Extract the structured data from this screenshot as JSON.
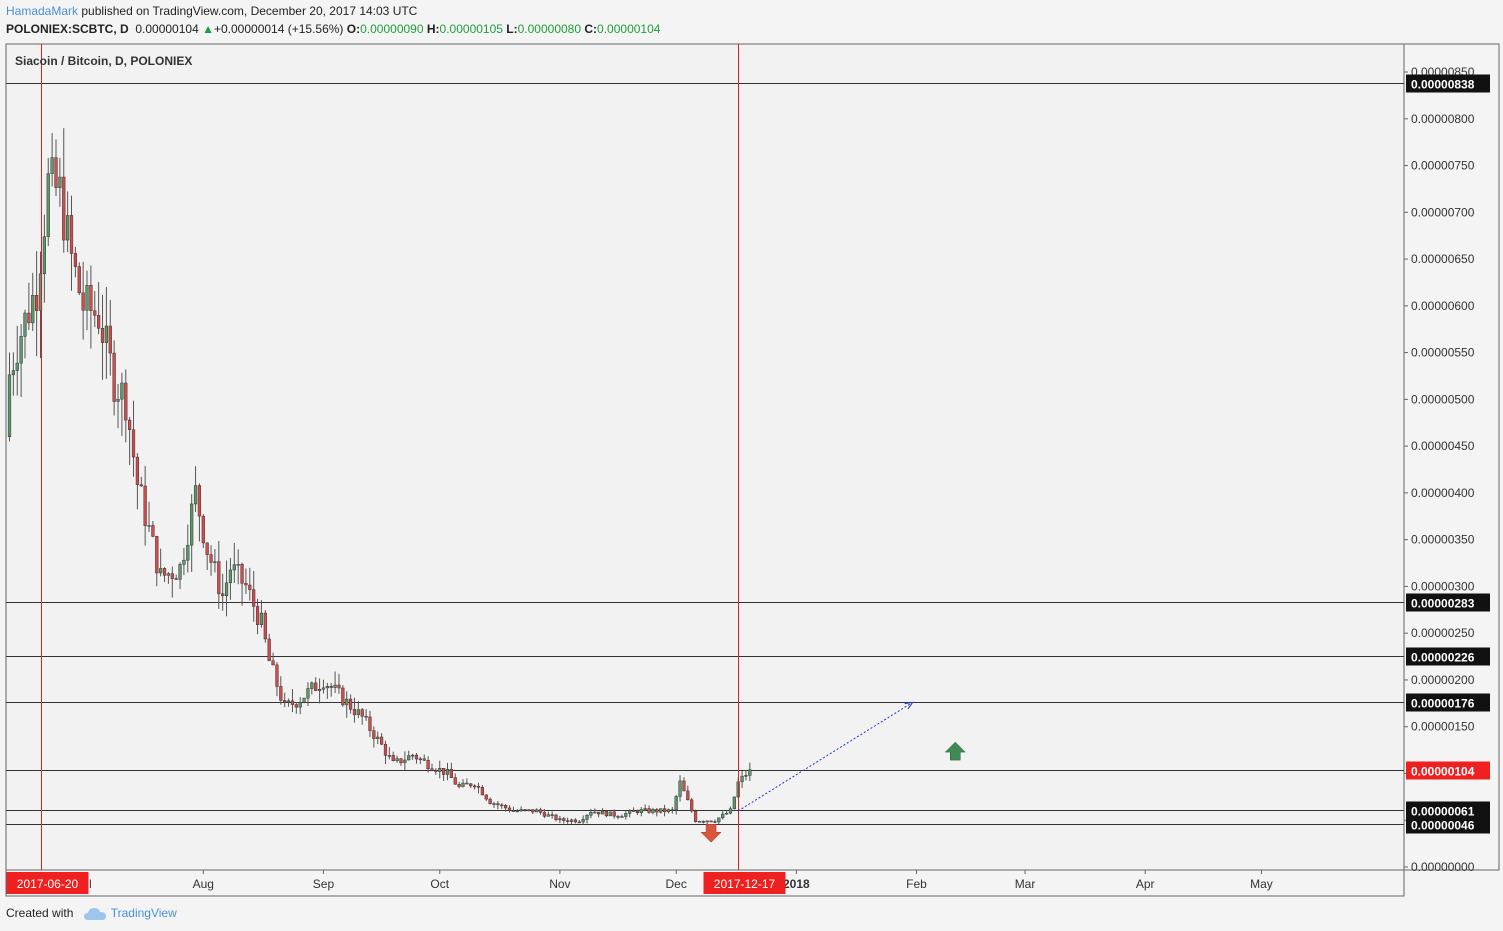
{
  "header": {
    "author": "HamadaMark",
    "published_text": "published on TradingView.com, December 20, 2017 14:03 UTC",
    "symbol": "POLONIEX:SCBTC, D",
    "last_price": "0.00000104",
    "change_arrow": "▲",
    "change": "+0.00000014 (+15.56%)",
    "open_label": "O:",
    "open": "0.00000090",
    "high_label": "H:",
    "high": "0.00000105",
    "low_label": "L:",
    "low": "0.00000080",
    "close_label": "C:",
    "close": "0.00000104"
  },
  "footer": {
    "created_with": "Created with",
    "brand": "TradingView"
  },
  "colors": {
    "up": "#5b9a68",
    "down": "#d64a4a",
    "accent": "#4a90d9",
    "vertical_marker": "#e02020"
  },
  "chart_data": {
    "type": "candlestick",
    "title": "Siacoin / Bitcoin, D, POLONIEX",
    "y_ticks": [
      "0.00000850",
      "0.00000800",
      "0.00000750",
      "0.00000700",
      "0.00000650",
      "0.00000600",
      "0.00000550",
      "0.00000500",
      "0.00000450",
      "0.00000400",
      "0.00000350",
      "0.00000300",
      "0.00000250",
      "0.00000200",
      "0.00000150",
      "0.00000100",
      "0.00000050",
      "0.00000000"
    ],
    "y_range": [
      0,
      8.5e-06
    ],
    "x_labels": [
      {
        "label": "Aug",
        "date": "2017-08-01"
      },
      {
        "label": "Sep",
        "date": "2017-09-01"
      },
      {
        "label": "Oct",
        "date": "2017-10-01"
      },
      {
        "label": "Nov",
        "date": "2017-11-01"
      },
      {
        "label": "Dec",
        "date": "2017-12-01"
      },
      {
        "label": "2018",
        "date": "2018-01-01"
      },
      {
        "label": "Feb",
        "date": "2018-02-01"
      },
      {
        "label": "Mar",
        "date": "2018-03-01"
      },
      {
        "label": "Apr",
        "date": "2018-04-01"
      },
      {
        "label": "May",
        "date": "2018-05-01"
      }
    ],
    "partial_x_label": "l",
    "x_range": [
      "2017-06-20",
      "2018-05-21"
    ],
    "vertical_markers": [
      {
        "date": "2017-06-20",
        "label": "2017-06-20"
      },
      {
        "date": "2017-12-17",
        "label": "2017-12-17"
      }
    ],
    "horizontal_levels": [
      {
        "value": 8.38e-06,
        "label": "0.00000838"
      },
      {
        "value": 2.83e-06,
        "label": "0.00000283"
      },
      {
        "value": 2.26e-06,
        "label": "0.00000226"
      },
      {
        "value": 1.76e-06,
        "label": "0.00000176"
      },
      {
        "value": 1.04e-06,
        "label": "0.00000104",
        "current": true
      },
      {
        "value": 6.1e-07,
        "label": "0.00000061"
      },
      {
        "value": 4.6e-07,
        "label": "0.00000046"
      }
    ],
    "projection": {
      "from": {
        "date": "2017-12-17",
        "value": 6e-07
      },
      "to": {
        "date": "2018-01-31",
        "value": 1.76e-06
      }
    },
    "signals": [
      {
        "type": "sell",
        "date": "2017-12-10",
        "value": 3.5e-07
      },
      {
        "type": "buy",
        "date": "2018-02-11",
        "value": 1.25e-06
      }
    ],
    "anchors": [
      [
        "2017-06-08",
        4.6e-06
      ],
      [
        "2017-06-14",
        5.6e-06
      ],
      [
        "2017-06-19",
        6.2e-06
      ],
      [
        "2017-06-22",
        7.3e-06
      ],
      [
        "2017-06-25",
        7.2e-06
      ],
      [
        "2017-06-28",
        6.5e-06
      ],
      [
        "2017-07-01",
        6e-06
      ],
      [
        "2017-07-05",
        5.9e-06
      ],
      [
        "2017-07-09",
        5.2e-06
      ],
      [
        "2017-07-12",
        5e-06
      ],
      [
        "2017-07-15",
        4.1e-06
      ],
      [
        "2017-07-18",
        3.6e-06
      ],
      [
        "2017-07-21",
        3.1e-06
      ],
      [
        "2017-07-26",
        3.2e-06
      ],
      [
        "2017-07-30",
        4e-06
      ],
      [
        "2017-08-02",
        3.4e-06
      ],
      [
        "2017-08-06",
        2.9e-06
      ],
      [
        "2017-08-08",
        3.2e-06
      ],
      [
        "2017-08-12",
        3e-06
      ],
      [
        "2017-08-16",
        2.6e-06
      ],
      [
        "2017-08-18",
        2.2e-06
      ],
      [
        "2017-08-22",
        1.7e-06
      ],
      [
        "2017-08-26",
        1.8e-06
      ],
      [
        "2017-09-01",
        2e-06
      ],
      [
        "2017-09-06",
        1.8e-06
      ],
      [
        "2017-09-11",
        1.6e-06
      ],
      [
        "2017-09-16",
        1.3e-06
      ],
      [
        "2017-09-19",
        1.1e-06
      ],
      [
        "2017-09-24",
        1.2e-06
      ],
      [
        "2017-09-28",
        1.1e-06
      ],
      [
        "2017-10-03",
        1e-06
      ],
      [
        "2017-10-06",
        8.5e-07
      ],
      [
        "2017-10-10",
        9e-07
      ],
      [
        "2017-10-14",
        7e-07
      ],
      [
        "2017-10-20",
        6e-07
      ],
      [
        "2017-10-26",
        6e-07
      ],
      [
        "2017-11-01",
        5e-07
      ],
      [
        "2017-11-06",
        5e-07
      ],
      [
        "2017-11-09",
        6e-07
      ],
      [
        "2017-11-16",
        5.5e-07
      ],
      [
        "2017-11-21",
        6e-07
      ],
      [
        "2017-11-26",
        6e-07
      ],
      [
        "2017-11-30",
        6e-07
      ],
      [
        "2017-12-02",
        9e-07
      ],
      [
        "2017-12-04",
        7e-07
      ],
      [
        "2017-12-06",
        5e-07
      ],
      [
        "2017-12-11",
        5e-07
      ],
      [
        "2017-12-15",
        6e-07
      ],
      [
        "2017-12-17",
        9e-07
      ],
      [
        "2017-12-20",
        1.04e-06
      ]
    ]
  }
}
